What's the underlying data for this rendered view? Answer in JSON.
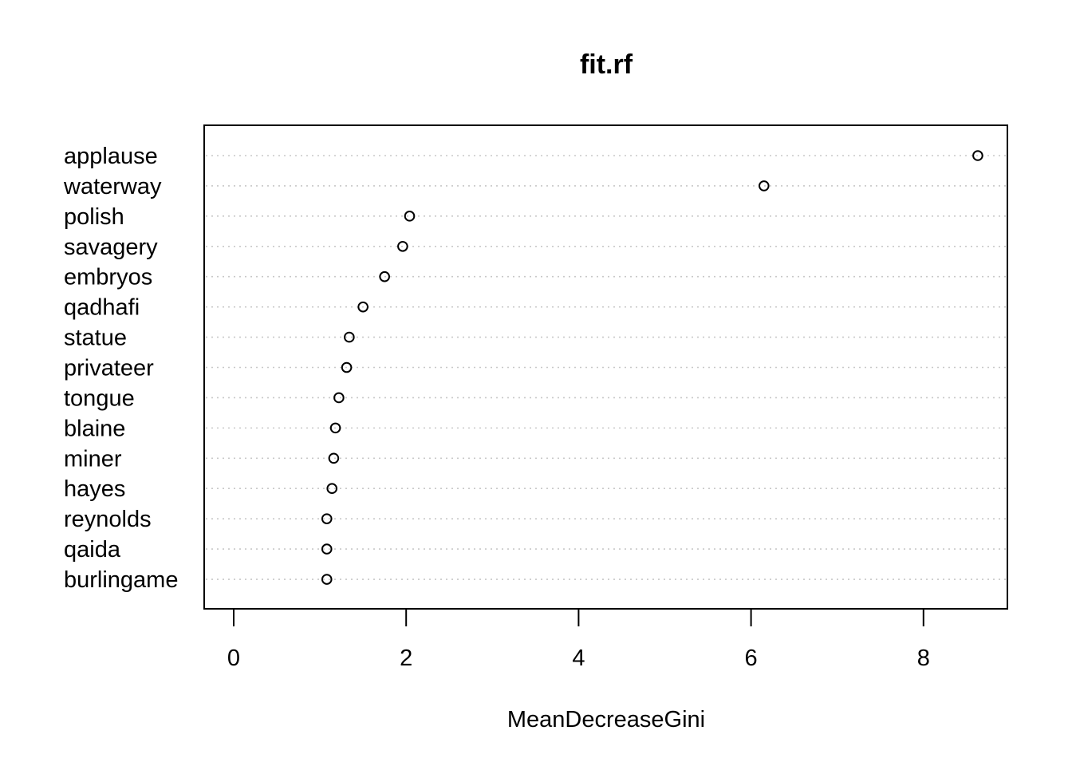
{
  "chart_data": {
    "type": "scatter",
    "subtype": "dotchart",
    "title": "fit.rf",
    "xlabel": "MeanDecreaseGini",
    "ylabel": "",
    "xlim": [
      0,
      9
    ],
    "x_ticks": [
      0,
      2,
      4,
      6,
      8
    ],
    "x_tick_labels": [
      "0",
      "2",
      "4",
      "6",
      "8"
    ],
    "grid": "dotted horizontal lines per category",
    "marker": "open-circle",
    "points": [
      {
        "label": "applause",
        "value": 8.63
      },
      {
        "label": "waterway",
        "value": 6.15
      },
      {
        "label": "polish",
        "value": 2.04
      },
      {
        "label": "savagery",
        "value": 1.96
      },
      {
        "label": "embryos",
        "value": 1.75
      },
      {
        "label": "qadhafi",
        "value": 1.5
      },
      {
        "label": "statue",
        "value": 1.34
      },
      {
        "label": "privateer",
        "value": 1.31
      },
      {
        "label": "tongue",
        "value": 1.22
      },
      {
        "label": "blaine",
        "value": 1.18
      },
      {
        "label": "miner",
        "value": 1.16
      },
      {
        "label": "hayes",
        "value": 1.14
      },
      {
        "label": "reynolds",
        "value": 1.08
      },
      {
        "label": "qaida",
        "value": 1.08
      },
      {
        "label": "burlingame",
        "value": 1.08
      }
    ]
  }
}
